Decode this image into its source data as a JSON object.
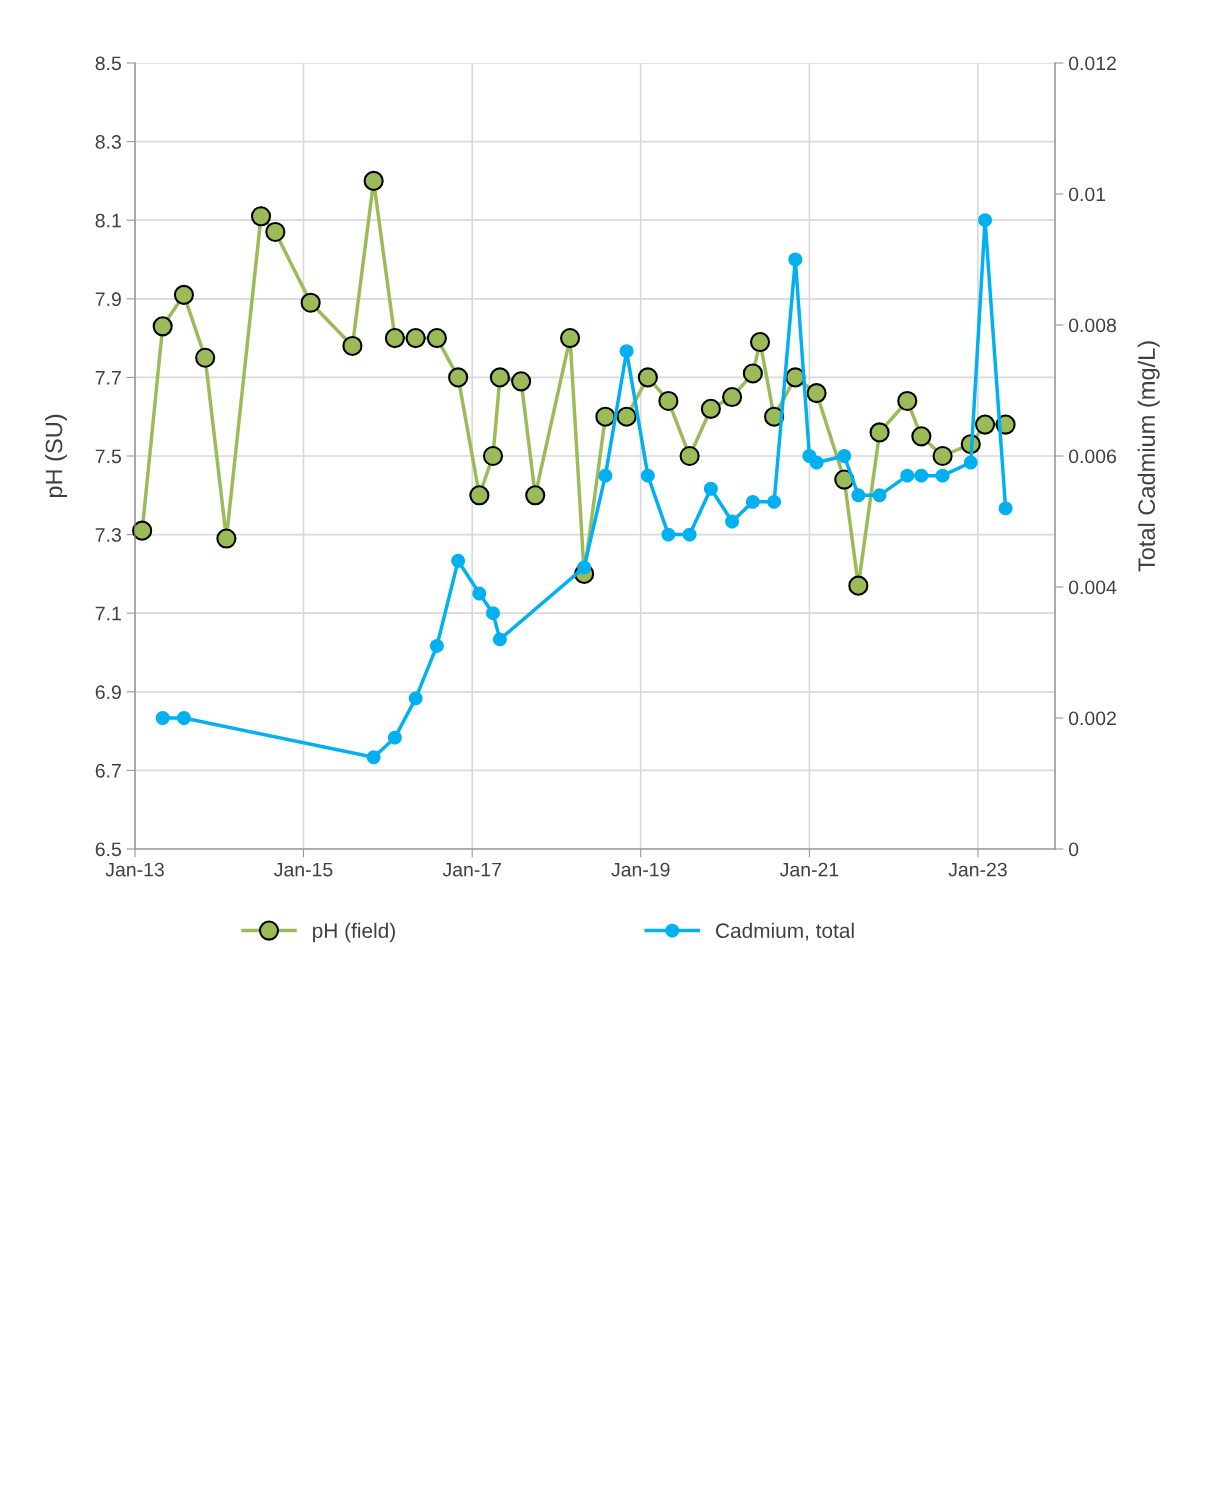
{
  "chart_data": {
    "type": "line",
    "ylabel": "pH (SU)",
    "y2label": "Total Cadmium (mg/L)",
    "xlim": [
      "2013-01",
      "2023-12"
    ],
    "xticks": [
      {
        "value": "2013-01",
        "label": "Jan-13"
      },
      {
        "value": "2015-01",
        "label": "Jan-15"
      },
      {
        "value": "2017-01",
        "label": "Jan-17"
      },
      {
        "value": "2019-01",
        "label": "Jan-19"
      },
      {
        "value": "2021-01",
        "label": "Jan-21"
      },
      {
        "value": "2023-01",
        "label": "Jan-23"
      }
    ],
    "ylim": [
      6.5,
      8.5
    ],
    "yticks": [
      {
        "value": 6.5,
        "label": "6.5"
      },
      {
        "value": 6.7,
        "label": "6.7"
      },
      {
        "value": 6.9,
        "label": "6.9"
      },
      {
        "value": 7.1,
        "label": "7.1"
      },
      {
        "value": 7.3,
        "label": "7.3"
      },
      {
        "value": 7.5,
        "label": "7.5"
      },
      {
        "value": 7.7,
        "label": "7.7"
      },
      {
        "value": 7.9,
        "label": "7.9"
      },
      {
        "value": 8.1,
        "label": "8.1"
      },
      {
        "value": 8.3,
        "label": "8.3"
      },
      {
        "value": 8.5,
        "label": "8.5"
      }
    ],
    "y2lim": [
      0,
      0.012
    ],
    "y2ticks": [
      0,
      0.002,
      0.004,
      0.006,
      0.008,
      0.01,
      0.012
    ],
    "grid": true,
    "legend": "bottom",
    "marker": "circle",
    "line_style": "solid",
    "series": [
      {
        "name": "pH (field)",
        "color": "#9bbb59",
        "x": [
          "2013-02",
          "2013-05",
          "2013-08",
          "2013-11",
          "2014-02",
          "2014-07",
          "2014-09",
          "2015-02",
          "2015-08",
          "2015-11",
          "2016-02",
          "2016-05",
          "2016-08",
          "2016-11",
          "2017-02",
          "2017-04",
          "2017-05",
          "2017-08",
          "2017-10",
          "2018-03",
          "2018-05",
          "2018-08",
          "2018-11",
          "2019-02",
          "2019-05",
          "2019-08",
          "2019-11",
          "2020-02",
          "2020-05",
          "2020-06",
          "2020-08",
          "2020-11",
          "2021-02",
          "2021-06",
          "2021-08",
          "2021-11",
          "2022-03",
          "2022-05",
          "2022-08",
          "2022-12",
          "2023-02",
          "2023-05"
        ],
        "values": [
          7.31,
          7.83,
          7.91,
          7.75,
          7.29,
          8.11,
          8.07,
          7.89,
          7.78,
          8.2,
          7.8,
          7.8,
          7.8,
          7.7,
          7.4,
          7.5,
          7.7,
          7.69,
          7.4,
          7.8,
          7.2,
          7.6,
          7.6,
          7.7,
          7.64,
          7.5,
          7.62,
          7.65,
          7.71,
          7.79,
          7.6,
          7.7,
          7.66,
          7.44,
          7.17,
          7.56,
          7.64,
          7.55,
          7.5,
          7.53,
          7.58,
          7.58
        ]
      },
      {
        "name": "Cadmium, total",
        "color": "#00b0f0",
        "axis": "y2",
        "x": [
          "2013-05",
          "2013-08",
          "2015-11",
          "2016-02",
          "2016-05",
          "2016-08",
          "2016-11",
          "2017-02",
          "2017-04",
          "2017-05",
          "2018-05",
          "2018-08",
          "2018-11",
          "2019-02",
          "2019-05",
          "2019-08",
          "2019-11",
          "2020-02",
          "2020-05",
          "2020-08",
          "2020-11",
          "2021-01",
          "2021-02",
          "2021-06",
          "2021-08",
          "2021-11",
          "2022-03",
          "2022-05",
          "2022-08",
          "2022-12",
          "2023-02",
          "2023-05"
        ],
        "values": [
          0.002,
          0.002,
          0.0014,
          0.0017,
          0.0023,
          0.0031,
          0.0044,
          0.0039,
          0.0036,
          0.0032,
          0.0043,
          0.0057,
          0.0076,
          0.0057,
          0.0048,
          0.0048,
          0.0055,
          0.005,
          0.0053,
          0.0053,
          0.009,
          0.006,
          0.0059,
          0.006,
          0.0054,
          0.0054,
          0.0057,
          0.0057,
          0.0057,
          0.0059,
          0.0096,
          0.0052
        ]
      }
    ]
  }
}
